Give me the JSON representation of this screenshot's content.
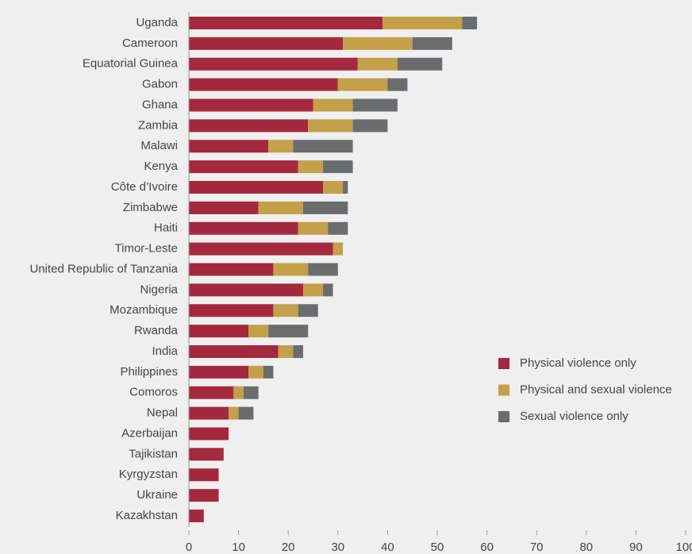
{
  "chart_data": {
    "type": "stacked-barh",
    "categories": [
      "Uganda",
      "Cameroon",
      "Equatorial Guinea",
      "Gabon",
      "Ghana",
      "Zambia",
      "Malawi",
      "Kenya",
      "Côte d’Ivoire",
      "Zimbabwe",
      "Haiti",
      "Timor-Leste",
      "United Republic of Tanzania",
      "Nigeria",
      "Mozambique",
      "Rwanda",
      "India",
      "Philippines",
      "Comoros",
      "Nepal",
      "Azerbaijan",
      "Tajikistan",
      "Kyrgyzstan",
      "Ukraine",
      "Kazakhstan"
    ],
    "series": [
      {
        "name": "Physical violence only",
        "color": "#a3293f",
        "values": [
          39,
          31,
          34,
          30,
          25,
          24,
          16,
          22,
          27,
          14,
          22,
          29,
          17,
          23,
          17,
          12,
          18,
          12,
          9,
          8,
          8,
          7,
          6,
          6,
          3
        ]
      },
      {
        "name": "Physical and sexual violence",
        "color": "#c3a049",
        "values": [
          16,
          14,
          8,
          10,
          8,
          9,
          5,
          5,
          4,
          9,
          6,
          2,
          7,
          4,
          5,
          4,
          3,
          3,
          2,
          2,
          0,
          0,
          0,
          0,
          0
        ]
      },
      {
        "name": "Sexual violence only",
        "color": "#6b6c6e",
        "values": [
          3,
          8,
          9,
          4,
          9,
          7,
          12,
          6,
          1,
          9,
          4,
          0,
          6,
          2,
          4,
          8,
          2,
          2,
          3,
          3,
          0,
          0,
          0,
          0,
          0
        ]
      }
    ],
    "xlim": [
      0,
      100
    ],
    "xticks": [
      0,
      10,
      20,
      30,
      40,
      50,
      60,
      70,
      80,
      90,
      100
    ],
    "legend": "right"
  }
}
